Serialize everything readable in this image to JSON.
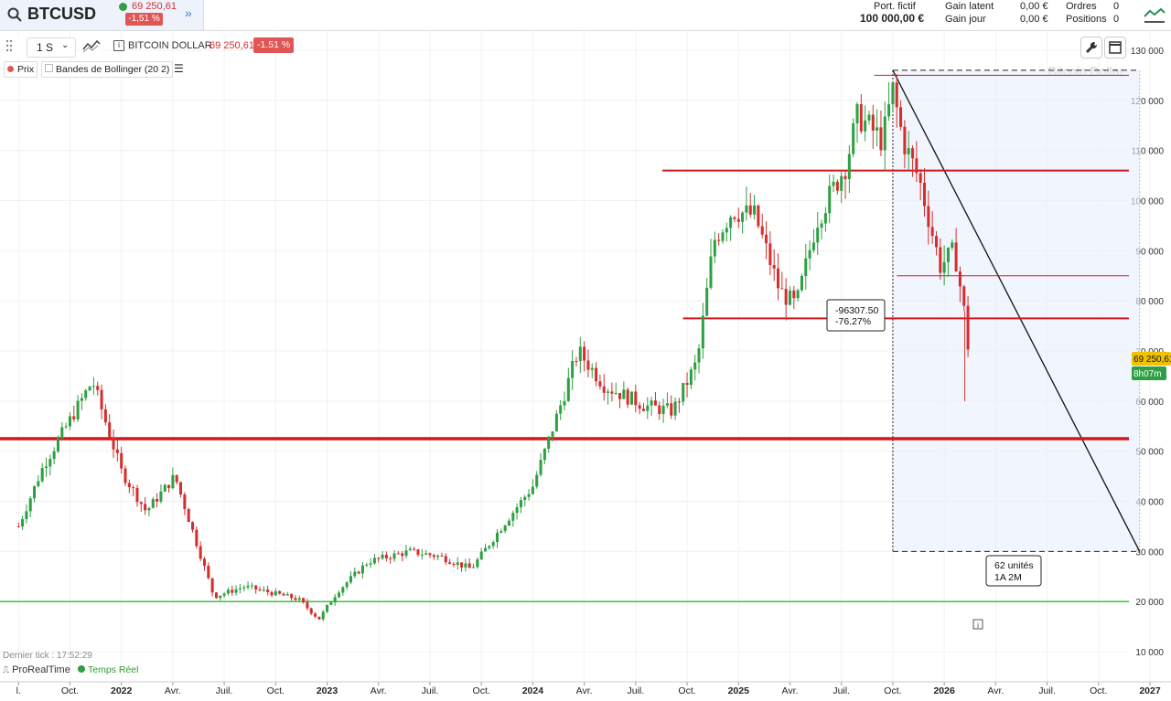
{
  "header": {
    "symbol": "BTCUSD",
    "price": "69 250,61",
    "change": "-1,51 %",
    "port_label": "Port. fictif",
    "port_value": "100 000,00 €",
    "gain_latent_label": "Gain latent",
    "gain_latent_value": "0,00 €",
    "gain_jour_label": "Gain jour",
    "gain_jour_value": "0,00 €",
    "ordres_label": "Ordres",
    "ordres_value": "0",
    "positions_label": "Positions",
    "positions_value": "0"
  },
  "toolbar": {
    "timeframe": "1 S",
    "instrument_name": "BITCOIN DOLLAR",
    "instrument_price": "69 250,61",
    "instrument_change": "-1.51 %"
  },
  "legend": {
    "prix": "Prix",
    "bollinger": "Bandes de Bollinger (20 2)"
  },
  "status": {
    "last_tick": "Dernier tick : 17:52:29",
    "brand": "ProRealTime",
    "realtime": "Temps Réel"
  },
  "colors": {
    "up": "#2ea043",
    "down": "#d32f2f",
    "level": "#d0191d",
    "support": "#3cc13c",
    "zone": "#e8eefb"
  },
  "chart_data": {
    "type": "candlestick",
    "watermark": "Bitcoin Dollar",
    "y_axis": {
      "ticks": [
        10000,
        20000,
        30000,
        40000,
        50000,
        60000,
        70000,
        80000,
        90000,
        100000,
        110000,
        120000,
        130000
      ],
      "labels": [
        "10 000",
        "20 000",
        "30 000",
        "40 000",
        "50 000",
        "60 000",
        "70 000",
        "80 000",
        "90 000",
        "100 000",
        "110 000",
        "120 000",
        "130 000"
      ],
      "range": [
        4000,
        134000
      ]
    },
    "x_axis": {
      "labels": [
        "l.",
        "Oct.",
        "2022",
        "Avr.",
        "Juil.",
        "Oct.",
        "2023",
        "Avr.",
        "Juil.",
        "Oct.",
        "2024",
        "Avr.",
        "Juil.",
        "Oct.",
        "2025",
        "Avr.",
        "Juil.",
        "Oct.",
        "2026",
        "Avr.",
        "Juil.",
        "Oct.",
        "2027"
      ],
      "bold": [
        "2022",
        "2023",
        "2024",
        "2025",
        "2026",
        "2027"
      ]
    },
    "series_anchors": [
      {
        "t": 2021.5,
        "v": 35000
      },
      {
        "t": 2021.62,
        "v": 47000
      },
      {
        "t": 2021.86,
        "v": 64000
      },
      {
        "t": 2022.0,
        "v": 46000
      },
      {
        "t": 2022.12,
        "v": 38000
      },
      {
        "t": 2022.26,
        "v": 45000
      },
      {
        "t": 2022.45,
        "v": 21000
      },
      {
        "t": 2022.6,
        "v": 23000
      },
      {
        "t": 2022.86,
        "v": 20500
      },
      {
        "t": 2022.96,
        "v": 16500
      },
      {
        "t": 2023.05,
        "v": 22000
      },
      {
        "t": 2023.2,
        "v": 28000
      },
      {
        "t": 2023.4,
        "v": 30000
      },
      {
        "t": 2023.55,
        "v": 29000
      },
      {
        "t": 2023.7,
        "v": 26500
      },
      {
        "t": 2023.85,
        "v": 35000
      },
      {
        "t": 2024.0,
        "v": 43000
      },
      {
        "t": 2024.15,
        "v": 61000
      },
      {
        "t": 2024.22,
        "v": 70000
      },
      {
        "t": 2024.35,
        "v": 63000
      },
      {
        "t": 2024.55,
        "v": 59000
      },
      {
        "t": 2024.68,
        "v": 58000
      },
      {
        "t": 2024.8,
        "v": 68000
      },
      {
        "t": 2024.88,
        "v": 92000
      },
      {
        "t": 2024.97,
        "v": 98000
      },
      {
        "t": 2025.08,
        "v": 97000
      },
      {
        "t": 2025.2,
        "v": 82000
      },
      {
        "t": 2025.28,
        "v": 79000
      },
      {
        "t": 2025.38,
        "v": 96000
      },
      {
        "t": 2025.52,
        "v": 107000
      },
      {
        "t": 2025.58,
        "v": 117000
      },
      {
        "t": 2025.7,
        "v": 112000
      },
      {
        "t": 2025.75,
        "v": 122000
      },
      {
        "t": 2025.8,
        "v": 112000
      },
      {
        "t": 2025.88,
        "v": 104000
      },
      {
        "t": 2025.98,
        "v": 87000
      },
      {
        "t": 2026.05,
        "v": 90000
      },
      {
        "t": 2026.1,
        "v": 77000
      },
      {
        "t": 2026.12,
        "v": 69250
      }
    ],
    "levels": [
      {
        "value": 125000,
        "weight": "thin"
      },
      {
        "value": 106000,
        "weight": "medium"
      },
      {
        "value": 85000,
        "weight": "thin"
      },
      {
        "value": 76500,
        "weight": "medium"
      },
      {
        "value": 52500,
        "weight": "thick"
      },
      {
        "value": 20000,
        "weight": "support"
      }
    ],
    "measure": {
      "text1": "-96307.50",
      "text2": "-76.27%",
      "units1": "62 unités",
      "units2": "1A 2M",
      "from": {
        "t": 2025.75,
        "v": 126000
      },
      "to": {
        "t": 2026.95,
        "v": 30000
      }
    },
    "last_price_label": "69 250,61",
    "countdown_label": "8h07m"
  }
}
